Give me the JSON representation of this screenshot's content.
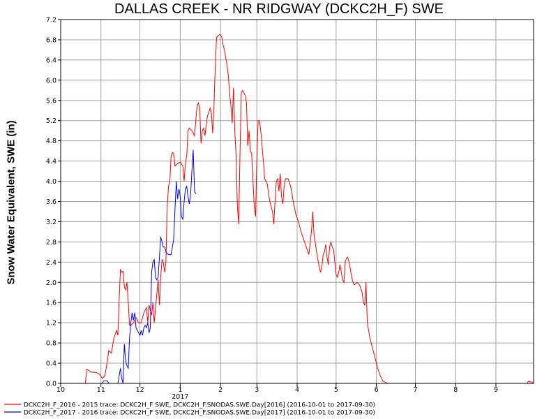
{
  "chart_data": {
    "type": "line",
    "title": "DALLAS CREEK - NR RIDGWAY (DCKC2H_F) SWE",
    "xlabel": "",
    "ylabel": "Snow Water Equivalent, SWE (in)",
    "ylim": [
      0,
      7.2
    ],
    "yticks": [
      0.0,
      0.4,
      0.8,
      1.2,
      1.6,
      2.0,
      2.4,
      2.8,
      3.2,
      3.6,
      4.0,
      4.4,
      4.8,
      5.2,
      5.6,
      6.0,
      6.4,
      6.8,
      7.2
    ],
    "ytick_labels": [
      "0.0",
      "0.4",
      "0.8",
      "1.2",
      "1.6",
      "2.0",
      "2.4",
      "2.8",
      "3.2",
      "3.6",
      "4.0",
      "4.4",
      "4.8",
      "5.2",
      "5.6",
      "6.0",
      "6.4",
      "6.8",
      "7.2"
    ],
    "xlim": [
      "2016-10-01",
      "2017-09-30"
    ],
    "xticks": [
      {
        "date": "2016-10-01",
        "label": "10"
      },
      {
        "date": "2016-11-01",
        "label": "11"
      },
      {
        "date": "2016-12-01",
        "label": "12"
      },
      {
        "date": "2017-01-01",
        "label": "1"
      },
      {
        "date": "2017-02-01",
        "label": "2"
      },
      {
        "date": "2017-03-01",
        "label": "3"
      },
      {
        "date": "2017-04-01",
        "label": "4"
      },
      {
        "date": "2017-05-01",
        "label": "5"
      },
      {
        "date": "2017-06-01",
        "label": "6"
      },
      {
        "date": "2017-07-01",
        "label": "7"
      },
      {
        "date": "2017-08-01",
        "label": "8"
      },
      {
        "date": "2017-09-01",
        "label": "9"
      }
    ],
    "year_label": {
      "date": "2017-01-01",
      "label": "2017"
    },
    "grid": true,
    "legend_position": "bottom",
    "series": [
      {
        "name": "DCKC2H_F_2016 - 2015 trace: DCKC2H_F SWE, DCKC2H_F.SNODAS.SWE.Day[2016] (2016-10-01 to 2017-09-30)",
        "color": "#ff0000",
        "points": [
          [
            "2016-10-20",
            0.0
          ],
          [
            "2016-10-21",
            0.28
          ],
          [
            "2016-10-23",
            0.25
          ],
          [
            "2016-10-25",
            0.22
          ],
          [
            "2016-10-28",
            0.22
          ],
          [
            "2016-10-31",
            0.18
          ],
          [
            "2016-11-02",
            0.1
          ],
          [
            "2016-11-04",
            0.15
          ],
          [
            "2016-11-06",
            0.45
          ],
          [
            "2016-11-07",
            0.65
          ],
          [
            "2016-11-09",
            0.6
          ],
          [
            "2016-11-11",
            0.9
          ],
          [
            "2016-11-13",
            1.05
          ],
          [
            "2016-11-14",
            0.95
          ],
          [
            "2016-11-15",
            1.65
          ],
          [
            "2016-11-16",
            2.25
          ],
          [
            "2016-11-17",
            2.2
          ],
          [
            "2016-11-18",
            2.22
          ],
          [
            "2016-11-19",
            1.9
          ],
          [
            "2016-11-20",
            1.85
          ],
          [
            "2016-11-21",
            2.0
          ],
          [
            "2016-11-22",
            1.6
          ],
          [
            "2016-11-23",
            1.15
          ],
          [
            "2016-11-24",
            1.15
          ],
          [
            "2016-11-26",
            1.2
          ],
          [
            "2016-11-28",
            1.3
          ],
          [
            "2016-11-30",
            1.2
          ],
          [
            "2016-12-02",
            1.2
          ],
          [
            "2016-12-04",
            1.4
          ],
          [
            "2016-12-06",
            1.5
          ],
          [
            "2016-12-07",
            1.2
          ],
          [
            "2016-12-08",
            1.55
          ],
          [
            "2016-12-09",
            1.45
          ],
          [
            "2016-12-10",
            1.35
          ],
          [
            "2016-12-11",
            1.6
          ],
          [
            "2016-12-12",
            1.2
          ],
          [
            "2016-12-13",
            1.5
          ],
          [
            "2016-12-15",
            2.05
          ],
          [
            "2016-12-16",
            1.55
          ],
          [
            "2016-12-17",
            2.1
          ],
          [
            "2016-12-18",
            2.45
          ],
          [
            "2016-12-19",
            2.4
          ],
          [
            "2016-12-20",
            2.2
          ],
          [
            "2016-12-21",
            2.4
          ],
          [
            "2016-12-22",
            3.5
          ],
          [
            "2016-12-23",
            3.9
          ],
          [
            "2016-12-24",
            4.0
          ],
          [
            "2016-12-25",
            4.5
          ],
          [
            "2016-12-26",
            4.57
          ],
          [
            "2016-12-27",
            4.55
          ],
          [
            "2016-12-28",
            4.3
          ],
          [
            "2016-12-30",
            4.35
          ],
          [
            "2017-01-01",
            4.38
          ],
          [
            "2017-01-03",
            4.3
          ],
          [
            "2017-01-04",
            4.0
          ],
          [
            "2017-01-05",
            4.35
          ],
          [
            "2017-01-06",
            4.5
          ],
          [
            "2017-01-07",
            5.0
          ],
          [
            "2017-01-08",
            5.05
          ],
          [
            "2017-01-10",
            5.0
          ],
          [
            "2017-01-12",
            4.9
          ],
          [
            "2017-01-13",
            5.2
          ],
          [
            "2017-01-14",
            5.5
          ],
          [
            "2017-01-15",
            5.55
          ],
          [
            "2017-01-16",
            5.45
          ],
          [
            "2017-01-17",
            4.75
          ],
          [
            "2017-01-18",
            5.0
          ],
          [
            "2017-01-19",
            5.05
          ],
          [
            "2017-01-20",
            4.9
          ],
          [
            "2017-01-21",
            5.1
          ],
          [
            "2017-01-22",
            5.3
          ],
          [
            "2017-01-23",
            5.35
          ],
          [
            "2017-01-24",
            5.45
          ],
          [
            "2017-01-25",
            5.35
          ],
          [
            "2017-01-26",
            4.95
          ],
          [
            "2017-01-27",
            5.5
          ],
          [
            "2017-01-28",
            6.3
          ],
          [
            "2017-01-29",
            6.85
          ],
          [
            "2017-01-30",
            6.87
          ],
          [
            "2017-01-31",
            6.9
          ],
          [
            "2017-02-01",
            6.9
          ],
          [
            "2017-02-02",
            6.85
          ],
          [
            "2017-02-03",
            6.7
          ],
          [
            "2017-02-04",
            6.6
          ],
          [
            "2017-02-05",
            6.45
          ],
          [
            "2017-02-06",
            6.3
          ],
          [
            "2017-02-07",
            6.1
          ],
          [
            "2017-02-08",
            5.75
          ],
          [
            "2017-02-09",
            5.5
          ],
          [
            "2017-02-10",
            5.15
          ],
          [
            "2017-02-11",
            5.85
          ],
          [
            "2017-02-12",
            5.0
          ],
          [
            "2017-02-13",
            4.5
          ],
          [
            "2017-02-14",
            3.5
          ],
          [
            "2017-02-15",
            3.15
          ],
          [
            "2017-02-16",
            4.5
          ],
          [
            "2017-02-17",
            5.75
          ],
          [
            "2017-02-18",
            5.8
          ],
          [
            "2017-02-19",
            5.75
          ],
          [
            "2017-02-20",
            5.7
          ],
          [
            "2017-02-21",
            5.55
          ],
          [
            "2017-02-22",
            4.7
          ],
          [
            "2017-02-23",
            5.0
          ],
          [
            "2017-02-24",
            4.6
          ],
          [
            "2017-02-25",
            4.55
          ],
          [
            "2017-02-26",
            4.0
          ],
          [
            "2017-02-27",
            3.5
          ],
          [
            "2017-02-28",
            3.3
          ],
          [
            "2017-03-01",
            4.5
          ],
          [
            "2017-03-02",
            5.2
          ],
          [
            "2017-03-03",
            5.2
          ],
          [
            "2017-03-04",
            5.0
          ],
          [
            "2017-03-05",
            4.7
          ],
          [
            "2017-03-06",
            4.4
          ],
          [
            "2017-03-07",
            4.05
          ],
          [
            "2017-03-08",
            4.0
          ],
          [
            "2017-03-09",
            3.95
          ],
          [
            "2017-03-10",
            3.75
          ],
          [
            "2017-03-11",
            3.6
          ],
          [
            "2017-03-12",
            3.5
          ],
          [
            "2017-03-13",
            3.4
          ],
          [
            "2017-03-14",
            3.15
          ],
          [
            "2017-03-15",
            3.6
          ],
          [
            "2017-03-16",
            4.0
          ],
          [
            "2017-03-17",
            4.05
          ],
          [
            "2017-03-18",
            3.8
          ],
          [
            "2017-03-19",
            4.15
          ],
          [
            "2017-03-20",
            3.7
          ],
          [
            "2017-03-21",
            3.55
          ],
          [
            "2017-03-22",
            3.9
          ],
          [
            "2017-03-23",
            4.05
          ],
          [
            "2017-03-25",
            4.05
          ],
          [
            "2017-03-27",
            3.9
          ],
          [
            "2017-03-29",
            3.6
          ],
          [
            "2017-03-31",
            3.35
          ],
          [
            "2017-04-02",
            3.2
          ],
          [
            "2017-04-04",
            3.0
          ],
          [
            "2017-04-06",
            2.85
          ],
          [
            "2017-04-08",
            2.7
          ],
          [
            "2017-04-10",
            2.55
          ],
          [
            "2017-04-12",
            3.0
          ],
          [
            "2017-04-13",
            3.4
          ],
          [
            "2017-04-14",
            2.95
          ],
          [
            "2017-04-16",
            2.6
          ],
          [
            "2017-04-17",
            2.45
          ],
          [
            "2017-04-18",
            2.3
          ],
          [
            "2017-04-19",
            2.2
          ],
          [
            "2017-04-20",
            2.3
          ],
          [
            "2017-04-21",
            2.55
          ],
          [
            "2017-04-22",
            2.6
          ],
          [
            "2017-04-23",
            2.75
          ],
          [
            "2017-04-24",
            2.5
          ],
          [
            "2017-04-25",
            2.35
          ],
          [
            "2017-04-26",
            2.7
          ],
          [
            "2017-04-27",
            2.8
          ],
          [
            "2017-04-28",
            2.7
          ],
          [
            "2017-04-29",
            2.65
          ],
          [
            "2017-04-30",
            2.4
          ],
          [
            "2017-05-01",
            2.15
          ],
          [
            "2017-05-02",
            2.1
          ],
          [
            "2017-05-03",
            2.2
          ],
          [
            "2017-05-04",
            2.35
          ],
          [
            "2017-05-05",
            2.2
          ],
          [
            "2017-05-06",
            2.05
          ],
          [
            "2017-05-07",
            2.0
          ],
          [
            "2017-05-08",
            2.4
          ],
          [
            "2017-05-09",
            2.48
          ],
          [
            "2017-05-10",
            2.5
          ],
          [
            "2017-05-11",
            2.4
          ],
          [
            "2017-05-12",
            2.25
          ],
          [
            "2017-05-13",
            2.1
          ],
          [
            "2017-05-14",
            2.0
          ],
          [
            "2017-05-15",
            1.95
          ],
          [
            "2017-05-17",
            2.0
          ],
          [
            "2017-05-19",
            1.95
          ],
          [
            "2017-05-21",
            1.8
          ],
          [
            "2017-05-22",
            1.6
          ],
          [
            "2017-05-23",
            1.55
          ],
          [
            "2017-05-24",
            2.0
          ],
          [
            "2017-05-25",
            1.2
          ],
          [
            "2017-05-27",
            0.9
          ],
          [
            "2017-05-29",
            0.7
          ],
          [
            "2017-05-31",
            0.5
          ],
          [
            "2017-06-02",
            0.3
          ],
          [
            "2017-06-04",
            0.15
          ],
          [
            "2017-06-06",
            0.05
          ],
          [
            "2017-06-08",
            0.02
          ],
          [
            "2017-06-10",
            0.0
          ],
          [
            "2017-09-25",
            0.0
          ],
          [
            "2017-09-26",
            0.04
          ],
          [
            "2017-09-28",
            0.03
          ],
          [
            "2017-09-30",
            0.0
          ]
        ]
      },
      {
        "name": "DCKC2H_F_2017 - 2016 trace: DCKC2H_F SWE, DCKC2H_F.SNODAS.SWE.Day[2017] (2016-10-01 to 2017-09-30)",
        "color": "#0000ff",
        "points": [
          [
            "2016-11-02",
            0.0
          ],
          [
            "2016-11-03",
            0.05
          ],
          [
            "2016-11-06",
            0.05
          ],
          [
            "2016-11-07",
            0.0
          ],
          [
            "2016-11-14",
            0.0
          ],
          [
            "2016-11-15",
            0.15
          ],
          [
            "2016-11-16",
            0.3
          ],
          [
            "2016-11-17",
            0.1
          ],
          [
            "2016-11-18",
            0.0
          ],
          [
            "2016-11-19",
            0.78
          ],
          [
            "2016-11-20",
            0.45
          ],
          [
            "2016-11-21",
            0.35
          ],
          [
            "2016-11-22",
            0.3
          ],
          [
            "2016-11-23",
            0.9
          ],
          [
            "2016-11-24",
            1.2
          ],
          [
            "2016-11-25",
            1.4
          ],
          [
            "2016-11-26",
            1.25
          ],
          [
            "2016-11-27",
            1.4
          ],
          [
            "2016-11-28",
            1.1
          ],
          [
            "2016-11-29",
            1.05
          ],
          [
            "2016-12-01",
            0.95
          ],
          [
            "2016-12-02",
            1.05
          ],
          [
            "2016-12-03",
            0.95
          ],
          [
            "2016-12-04",
            1.1
          ],
          [
            "2016-12-05",
            1.15
          ],
          [
            "2016-12-06",
            1.1
          ],
          [
            "2016-12-07",
            1.2
          ],
          [
            "2016-12-08",
            1.0
          ],
          [
            "2016-12-09",
            1.1
          ],
          [
            "2016-12-10",
            2.2
          ],
          [
            "2016-12-11",
            2.4
          ],
          [
            "2016-12-12",
            2.45
          ],
          [
            "2016-12-13",
            2.1
          ],
          [
            "2016-12-14",
            2.05
          ],
          [
            "2016-12-15",
            2.1
          ],
          [
            "2016-12-16",
            2.5
          ],
          [
            "2016-12-17",
            2.9
          ],
          [
            "2016-12-18",
            2.8
          ],
          [
            "2016-12-19",
            2.7
          ],
          [
            "2016-12-20",
            2.7
          ],
          [
            "2016-12-21",
            2.6
          ],
          [
            "2016-12-23",
            2.55
          ],
          [
            "2016-12-25",
            2.55
          ],
          [
            "2016-12-27",
            2.85
          ],
          [
            "2016-12-28",
            3.45
          ],
          [
            "2016-12-29",
            4.0
          ],
          [
            "2016-12-30",
            3.65
          ],
          [
            "2016-12-31",
            3.85
          ],
          [
            "2017-01-01",
            3.7
          ],
          [
            "2017-01-02",
            3.3
          ],
          [
            "2017-01-03",
            3.25
          ],
          [
            "2017-01-04",
            3.6
          ],
          [
            "2017-01-05",
            3.85
          ],
          [
            "2017-01-06",
            3.9
          ],
          [
            "2017-01-07",
            3.7
          ],
          [
            "2017-01-08",
            3.55
          ],
          [
            "2017-01-09",
            3.75
          ],
          [
            "2017-01-10",
            4.2
          ],
          [
            "2017-01-11",
            4.62
          ],
          [
            "2017-01-12",
            3.8
          ],
          [
            "2017-01-13",
            3.75
          ]
        ]
      }
    ]
  }
}
